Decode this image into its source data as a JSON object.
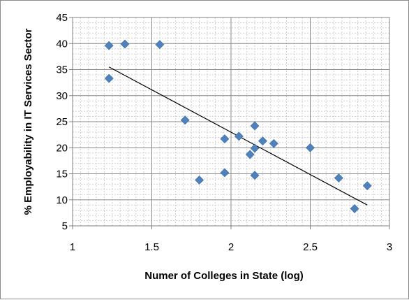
{
  "chart_data": {
    "type": "scatter",
    "xlabel": "Numer of Colleges in  State (log)",
    "ylabel": "% Employability in IT Services Sector",
    "xlim": [
      1,
      3
    ],
    "ylim": [
      5,
      45
    ],
    "x_ticks": [
      1,
      1.5,
      2,
      2.5,
      3
    ],
    "x_tick_labels": [
      "1",
      "1.5",
      "2",
      "2.5",
      "3"
    ],
    "y_ticks": [
      5,
      10,
      15,
      20,
      25,
      30,
      35,
      40,
      45
    ],
    "y_tick_labels": [
      "5",
      "10",
      "15",
      "20",
      "25",
      "30",
      "35",
      "40",
      "45"
    ],
    "grid": true,
    "legend": "none",
    "marker": "diamond",
    "marker_color": "#4f81bd",
    "trendline_color": "#000000",
    "points": [
      {
        "x": 1.23,
        "y": 39.6
      },
      {
        "x": 1.33,
        "y": 39.9
      },
      {
        "x": 1.55,
        "y": 39.8
      },
      {
        "x": 1.23,
        "y": 33.3
      },
      {
        "x": 1.71,
        "y": 25.3
      },
      {
        "x": 1.8,
        "y": 13.8
      },
      {
        "x": 1.96,
        "y": 21.7
      },
      {
        "x": 1.96,
        "y": 15.2
      },
      {
        "x": 2.05,
        "y": 22.2
      },
      {
        "x": 2.12,
        "y": 18.7
      },
      {
        "x": 2.15,
        "y": 24.2
      },
      {
        "x": 2.15,
        "y": 19.9
      },
      {
        "x": 2.15,
        "y": 14.7
      },
      {
        "x": 2.2,
        "y": 21.3
      },
      {
        "x": 2.27,
        "y": 20.8
      },
      {
        "x": 2.5,
        "y": 20.0
      },
      {
        "x": 2.68,
        "y": 14.2
      },
      {
        "x": 2.78,
        "y": 8.3
      },
      {
        "x": 2.86,
        "y": 12.7
      }
    ],
    "trendline": {
      "x": [
        1.23,
        2.86
      ],
      "y": [
        35.5,
        9.0
      ]
    }
  }
}
